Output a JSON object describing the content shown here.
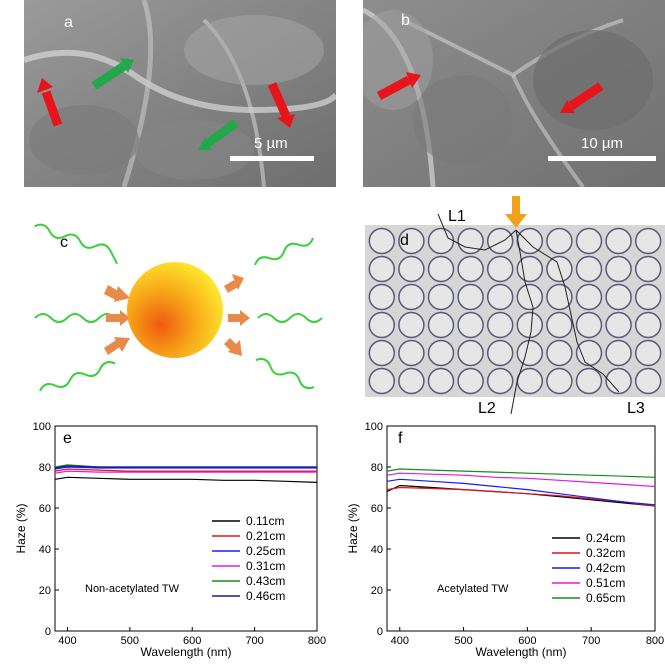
{
  "panels": {
    "a": {
      "letter": "a",
      "scale_label": "5 µm"
    },
    "b": {
      "letter": "b",
      "scale_label": "10 µm"
    },
    "c": {
      "letter": "c"
    },
    "d": {
      "letter": "d",
      "path_labels": [
        "L1",
        "L2",
        "L3"
      ]
    },
    "e": {
      "letter": "e"
    },
    "f": {
      "letter": "f"
    }
  },
  "colors": {
    "red_arrow": "#e8141c",
    "green_arrow": "#22a84a",
    "orange_arrow": "#f0a21a",
    "wave": "#3ecf3e"
  },
  "chart_data": [
    {
      "type": "line",
      "panel": "e",
      "xlabel": "Wavelength (nm)",
      "ylabel": "Haze (%)",
      "xlim": [
        380,
        800
      ],
      "ylim": [
        0,
        100
      ],
      "xticks": [
        400,
        500,
        600,
        700,
        800
      ],
      "yticks": [
        0,
        20,
        40,
        60,
        80,
        100
      ],
      "annotation": "Non-acetylated TW",
      "legend_position": "right",
      "x": [
        380,
        400,
        450,
        500,
        550,
        600,
        650,
        700,
        750,
        800
      ],
      "series": [
        {
          "name": "0.11cm",
          "color": "#000000",
          "values": [
            74,
            75,
            74.5,
            74,
            74,
            74,
            73.5,
            73.5,
            73,
            72.5
          ]
        },
        {
          "name": "0.21cm",
          "color": "#e0141a",
          "values": [
            78,
            79,
            78.5,
            78,
            78,
            78,
            78,
            78,
            78,
            78
          ]
        },
        {
          "name": "0.25cm",
          "color": "#1a1aff",
          "values": [
            79,
            80,
            79.5,
            79.5,
            79.5,
            79.5,
            79.5,
            79.5,
            79.5,
            79.5
          ]
        },
        {
          "name": "0.31cm",
          "color": "#e01ae0",
          "values": [
            77,
            78,
            77.5,
            77.5,
            77.5,
            77.5,
            77.5,
            77.5,
            77.5,
            77.5
          ]
        },
        {
          "name": "0.43cm",
          "color": "#1a8a1a",
          "values": [
            80,
            81,
            80,
            80,
            80,
            80,
            80,
            80,
            80,
            80
          ]
        },
        {
          "name": "0.46cm",
          "color": "#1a1a8a",
          "values": [
            79.5,
            80.5,
            80,
            80,
            80,
            80,
            80,
            80,
            80,
            80
          ]
        }
      ]
    },
    {
      "type": "line",
      "panel": "f",
      "xlabel": "Wavelength (nm)",
      "ylabel": "Haze (%)",
      "xlim": [
        380,
        800
      ],
      "ylim": [
        0,
        100
      ],
      "xticks": [
        400,
        500,
        600,
        700,
        800
      ],
      "yticks": [
        0,
        20,
        40,
        60,
        80,
        100
      ],
      "annotation": "Acetylated TW",
      "legend_position": "bottom-right",
      "x": [
        380,
        400,
        450,
        500,
        550,
        600,
        650,
        700,
        750,
        800
      ],
      "series": [
        {
          "name": "0.24cm",
          "color": "#000000",
          "values": [
            68,
            71,
            70,
            69,
            68,
            67,
            65.5,
            64,
            62.5,
            61
          ]
        },
        {
          "name": "0.32cm",
          "color": "#e0141a",
          "values": [
            69,
            70,
            69.5,
            69,
            68,
            67,
            66,
            64.5,
            63,
            61
          ]
        },
        {
          "name": "0.42cm",
          "color": "#1a1aff",
          "values": [
            73,
            74,
            73,
            72,
            70.5,
            69,
            67,
            65,
            63,
            61.5
          ]
        },
        {
          "name": "0.51cm",
          "color": "#e01ae0",
          "values": [
            76,
            77,
            76.5,
            76,
            75,
            74.5,
            73.5,
            72.5,
            71.5,
            70.5
          ]
        },
        {
          "name": "0.65cm",
          "color": "#1a8a1a",
          "values": [
            78,
            79,
            78.5,
            78,
            77.5,
            77,
            76.5,
            76,
            75.5,
            75
          ]
        }
      ]
    }
  ]
}
